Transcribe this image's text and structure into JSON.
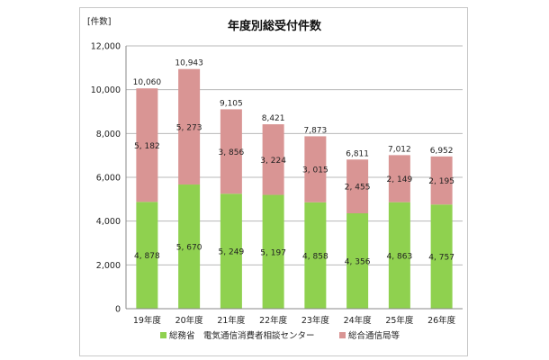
{
  "chart_data": {
    "type": "bar",
    "stacked": true,
    "title": "年度別総受付件数",
    "unit_label": "[件数]",
    "categories": [
      "19年度",
      "20年度",
      "21年度",
      "22年度",
      "23年度",
      "24年度",
      "25年度",
      "26年度"
    ],
    "series": [
      {
        "name": "総務省　電気通信消費者相談センター",
        "color": "#8fd14f",
        "values": [
          4878,
          5670,
          5249,
          5197,
          4858,
          4356,
          4863,
          4757
        ],
        "labels": [
          "4, 878",
          "5, 670",
          "5, 249",
          "5, 197",
          "4, 858",
          "4, 356",
          "4, 863",
          "4, 757"
        ]
      },
      {
        "name": "総合通信局等",
        "color": "#d99594",
        "values": [
          5182,
          5273,
          3856,
          3224,
          3015,
          2455,
          2149,
          2195
        ],
        "labels": [
          "5, 182",
          "5, 273",
          "3, 856",
          "3, 224",
          "3, 015",
          "2, 455",
          "2, 149",
          "2, 195"
        ]
      }
    ],
    "totals": [
      10060,
      10943,
      9105,
      8421,
      7873,
      6811,
      7012,
      6952
    ],
    "total_labels": [
      "10,060",
      "10,943",
      "9,105",
      "8,421",
      "7,873",
      "6,811",
      "7,012",
      "6,952"
    ],
    "ylim": [
      0,
      12000
    ],
    "yticks": [
      0,
      2000,
      4000,
      6000,
      8000,
      10000,
      12000
    ],
    "ytick_labels": [
      "0",
      "2,000",
      "4,000",
      "6,000",
      "8,000",
      "10,000",
      "12,000"
    ],
    "grid": true,
    "legend_position": "bottom"
  }
}
